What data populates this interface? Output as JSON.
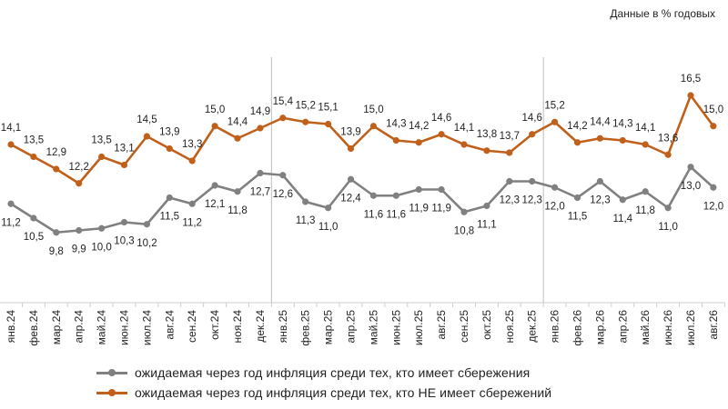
{
  "unit_note": "Данные в % годовых",
  "colors": {
    "savers": "#808080",
    "non_savers": "#c0601a",
    "axis": "#cfcfcf",
    "divider": "#bdbdbd"
  },
  "chart_data": {
    "type": "line",
    "categories": [
      "янв.24",
      "фев.24",
      "мар.24",
      "апр.24",
      "май.24",
      "июн.24",
      "июл.24",
      "авг.24",
      "сен.24",
      "окт.24",
      "ноя.24",
      "дек.24",
      "янв.25",
      "фев.25",
      "мар.25",
      "апр.25",
      "май.25",
      "июн.25",
      "июл.25",
      "авг.25",
      "сен.25",
      "окт.25",
      "ноя.25",
      "дек.25",
      "янв.26",
      "фев.26",
      "мар.26",
      "апр.26",
      "май.26",
      "июн.26",
      "июл.26",
      "авг.26"
    ],
    "series": [
      {
        "name": "ожидаемая через год инфляция  среди тех, кто имеет сбережения",
        "values": [
          11.2,
          10.5,
          9.8,
          9.9,
          10.0,
          10.3,
          10.2,
          11.5,
          11.2,
          12.1,
          11.8,
          12.7,
          12.6,
          11.3,
          11.0,
          12.4,
          11.6,
          11.6,
          11.9,
          11.9,
          10.8,
          11.1,
          12.3,
          12.3,
          12.0,
          11.5,
          12.3,
          11.4,
          11.8,
          11.0,
          13.0,
          12.0
        ],
        "labels": [
          "11,2",
          "10,5",
          "9,8",
          "9,9",
          "10,0",
          "10,3",
          "10,2",
          "11,5",
          "11,2",
          "12,1",
          "11,8",
          "12,7",
          "12,6",
          "11,3",
          "11,0",
          "12,4",
          "11,6",
          "11,6",
          "11,9",
          "11,9",
          "10,8",
          "11,1",
          "12,3",
          "12,3",
          "12,0",
          "11,5",
          "12,3",
          "11,4",
          "11,8",
          "11,0",
          "13,0",
          "12,0"
        ]
      },
      {
        "name": "ожидаемая через год инфляция  среди тех, кто НЕ имеет сбережений",
        "values": [
          14.1,
          13.5,
          12.9,
          12.2,
          13.5,
          13.1,
          14.5,
          13.9,
          13.3,
          15.0,
          14.4,
          14.9,
          15.4,
          15.2,
          15.1,
          13.9,
          15.0,
          14.3,
          14.2,
          14.6,
          14.1,
          13.8,
          13.7,
          14.6,
          15.2,
          14.2,
          14.4,
          14.3,
          14.1,
          13.6,
          16.5,
          15.0
        ],
        "labels": [
          "14,1",
          "13,5",
          "12,9",
          "12,2",
          "13,5",
          "13,1",
          "14,5",
          "13,9",
          "13,3",
          "15,0",
          "14,4",
          "14,9",
          "15,4",
          "15,2",
          "15,1",
          "13,9",
          "15,0",
          "14,3",
          "14,2",
          "14,6",
          "14,1",
          "13,8",
          "13,7",
          "14,6",
          "15,2",
          "14,2",
          "14,4",
          "14,3",
          "14,1",
          "13,6",
          "16,5",
          "15,0"
        ]
      }
    ],
    "ylim": [
      6.5,
      18.5
    ],
    "grid": false,
    "year_dividers_before": [
      "янв.25",
      "янв.26"
    ],
    "legend_placement": "bottom"
  }
}
